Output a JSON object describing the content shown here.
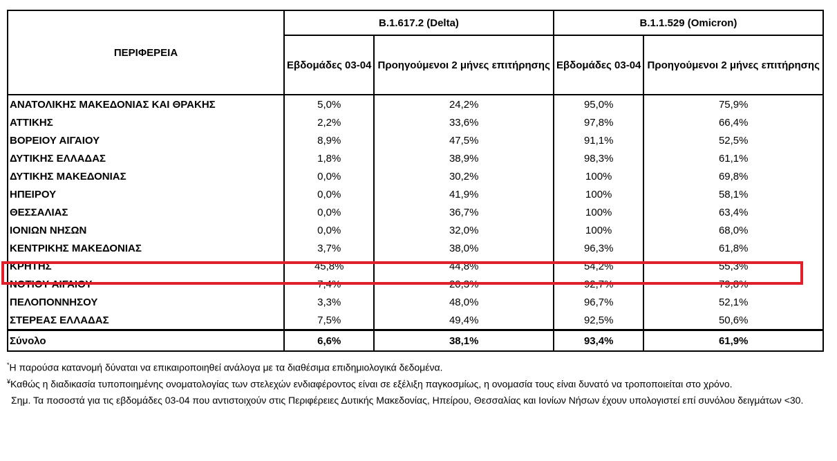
{
  "header": {
    "region": "ΠΕΡΙΦΕΡΕΙΑ",
    "delta": "B.1.617.2 (Delta)",
    "omicron": "B.1.1.529 (Omicron)",
    "weeks": "Εβδομάδες 03-04",
    "prev": "Προηγούμενοι 2 μήνες επιτήρησης"
  },
  "rows": [
    [
      "ΑΝΑΤΟΛΙΚΗΣ ΜΑΚΕΔΟΝΙΑΣ ΚΑΙ ΘΡΑΚΗΣ",
      "5,0%",
      "24,2%",
      "95,0%",
      "75,9%"
    ],
    [
      "ΑΤΤΙΚΗΣ",
      "2,2%",
      "33,6%",
      "97,8%",
      "66,4%"
    ],
    [
      "ΒΟΡΕΙΟΥ ΑΙΓΑΙΟΥ",
      "8,9%",
      "47,5%",
      "91,1%",
      "52,5%"
    ],
    [
      "ΔΥΤΙΚΗΣ ΕΛΛΑΔΑΣ",
      "1,8%",
      "38,9%",
      "98,3%",
      "61,1%"
    ],
    [
      "ΔΥΤΙΚΗΣ ΜΑΚΕΔΟΝΙΑΣ",
      "0,0%",
      "30,2%",
      "100%",
      "69,8%"
    ],
    [
      "ΗΠΕΙΡΟΥ",
      "0,0%",
      "41,9%",
      "100%",
      "58,1%"
    ],
    [
      "ΘΕΣΣΑΛΙΑΣ",
      "0,0%",
      "36,7%",
      "100%",
      "63,4%"
    ],
    [
      "ΙΟΝΙΩΝ ΝΗΣΩΝ",
      "0,0%",
      "32,0%",
      "100%",
      "68,0%"
    ],
    [
      "ΚΕΝΤΡΙΚΗΣ ΜΑΚΕΔΟΝΙΑΣ",
      "3,7%",
      "38,0%",
      "96,3%",
      "61,8%"
    ],
    [
      "ΚΡΗΤΗΣ",
      "45,8%",
      "44,8%",
      "54,2%",
      "55,3%"
    ],
    [
      "ΝΟΤΙΟΥ ΑΙΓΑΙΟΥ",
      "7,4%",
      "20,3%",
      "92,7%",
      "79,8%"
    ],
    [
      "ΠΕΛΟΠΟΝΝΗΣΟΥ",
      "3,3%",
      "48,0%",
      "96,7%",
      "52,1%"
    ],
    [
      "ΣΤΕΡΕΑΣ ΕΛΛΑΔΑΣ",
      "7,5%",
      "49,4%",
      "92,5%",
      "50,6%"
    ]
  ],
  "total": [
    "Σύνολο",
    "6,6%",
    "38,1%",
    "93,4%",
    "61,9%"
  ],
  "highlight_color": "#e0202a",
  "notes": {
    "m1": "*",
    "n1": "Η παρούσα κατανομή δύναται να επικαιροποιηθεί ανάλογα με τα διαθέσιμα επιδημιολογικά δεδομένα.",
    "m2": "¥",
    "n2": "Καθώς η διαδικασία τυποποιημένης ονοματολογίας των στελεχών ενδιαφέροντος είναι σε εξέλιξη παγκοσμίως, η ονομασία τους είναι δυνατό να τροποποιείται στο χρόνο.",
    "n3": "Σημ. Τα ποσοστά για τις εβδομάδες 03-04 που αντιστοιχούν στις Περιφέρειες Δυτικής Μακεδονίας, Ηπείρου, Θεσσαλίας και Ιονίων Νήσων έχουν υπολογιστεί επί συνόλου δειγμάτων <30."
  }
}
